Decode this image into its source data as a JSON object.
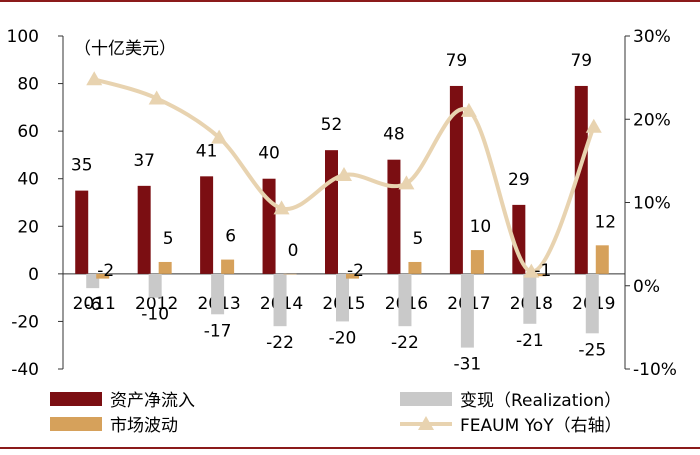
{
  "chart_data": {
    "type": "bar",
    "unit_note": "（十亿美元）",
    "categories": [
      "2011",
      "2012",
      "2013",
      "2014",
      "2015",
      "2016",
      "2017",
      "2018",
      "2019"
    ],
    "series": [
      {
        "name": "资产净流入",
        "kind": "bar",
        "color": "#7B0E12",
        "values": [
          35,
          37,
          41,
          40,
          52,
          48,
          79,
          29,
          79
        ],
        "labels": [
          "35",
          "37",
          "41",
          "40",
          "52",
          "48",
          "79",
          "29",
          "79"
        ]
      },
      {
        "name": "变现（Realization）",
        "kind": "bar",
        "color": "#C9C9C9",
        "values": [
          -6,
          -10,
          -17,
          -22,
          -20,
          -22,
          -31,
          -21,
          -25
        ],
        "labels": [
          "-6",
          "-10",
          "-17",
          "-22",
          "-20",
          "-22",
          "-31",
          "-21",
          "-25"
        ]
      },
      {
        "name": "市场波动",
        "kind": "bar",
        "color": "#D6A15B",
        "values": [
          -2,
          5,
          6,
          0,
          -2,
          5,
          10,
          -1,
          12
        ],
        "labels": [
          "-2",
          "5",
          "6",
          "0",
          "-2",
          "5",
          "10",
          "-1",
          "12"
        ]
      },
      {
        "name": "FEAUM YoY（右轴）",
        "kind": "line",
        "axis": "right",
        "color": "#E8D3B0",
        "values": [
          24.8,
          22.5,
          17.8,
          9.3,
          13.3,
          12.3,
          21.0,
          1.7,
          19.1
        ]
      }
    ],
    "left_axis": {
      "ylim": [
        -40,
        100
      ],
      "ticks": [
        "-40",
        "-20",
        "0",
        "20",
        "40",
        "60",
        "80",
        "100"
      ]
    },
    "right_axis": {
      "ylim": [
        -10,
        30
      ],
      "unit": "%",
      "ticks": [
        "-10%",
        "0%",
        "10%",
        "20%",
        "30%"
      ]
    },
    "legend": [
      "资产净流入",
      "变现（Realization）",
      "市场波动",
      "FEAUM YoY（右轴）"
    ],
    "legend_placement": "bottom"
  }
}
